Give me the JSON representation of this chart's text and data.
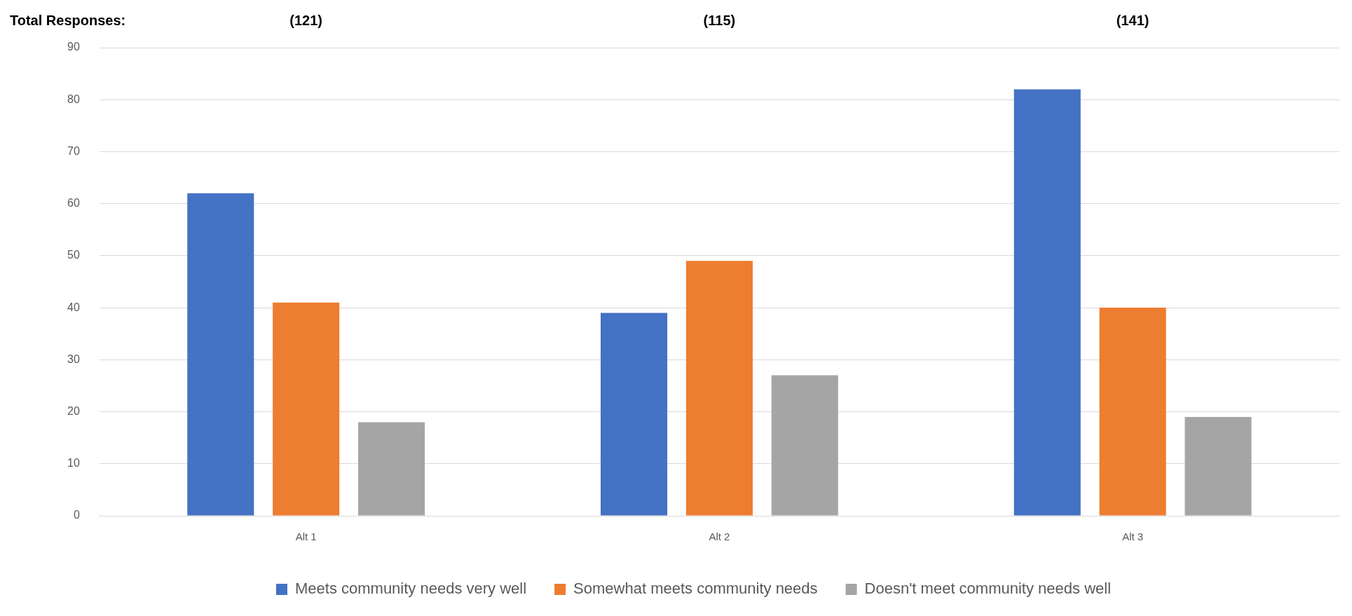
{
  "chart_data": {
    "type": "bar",
    "categories": [
      "Alt 1",
      "Alt 2",
      "Alt 3"
    ],
    "series": [
      {
        "name": "Meets community needs very well",
        "color": "#4472c4",
        "values": [
          62,
          39,
          82
        ]
      },
      {
        "name": "Somewhat meets community needs",
        "color": "#ed7d31",
        "values": [
          41,
          49,
          40
        ]
      },
      {
        "name": "Doesn't meet community needs well",
        "color": "#a5a5a5",
        "values": [
          18,
          27,
          19
        ]
      }
    ],
    "ylim": [
      0,
      90
    ],
    "yticks": [
      0,
      10,
      20,
      30,
      40,
      50,
      60,
      70,
      80,
      90
    ],
    "grid": "y",
    "legend": "bottom",
    "annotations": [
      "Total Responses:",
      "(121)",
      "(115)",
      "(141)"
    ]
  }
}
